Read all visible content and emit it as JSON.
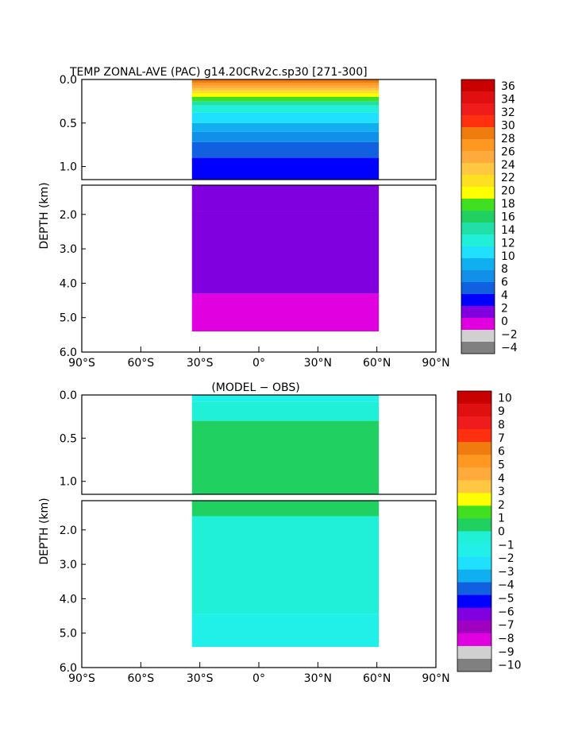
{
  "chart_data": [
    {
      "type": "heatmap",
      "title": "TEMP ZONAL-AVE (PAC) g14.20CRv2c.sp30 [271-300]",
      "ylabel": "DEPTH (km)",
      "xlabel": "",
      "x_ticks": [
        "90°S",
        "60°S",
        "30°S",
        "0°",
        "30°N",
        "60°N",
        "90°N"
      ],
      "x_tick_values": [
        -90,
        -60,
        -30,
        0,
        30,
        60,
        90
      ],
      "upper_y_ticks": [
        "0.0",
        "0.5",
        "1.0"
      ],
      "upper_y_values": [
        0,
        0.5,
        1.0
      ],
      "lower_y_ticks": [
        "2.0",
        "3.0",
        "4.0",
        "5.0",
        "6.0"
      ],
      "lower_y_values": [
        2,
        3,
        4,
        5,
        6
      ],
      "xlim": [
        -90,
        90
      ],
      "upper_ylim": [
        0,
        1.15
      ],
      "lower_ylim": [
        1.15,
        6.0
      ],
      "data_extent": {
        "lat_min": -34,
        "lat_max": 61,
        "max_depth": 5.4
      },
      "colorbar": {
        "labels": [
          "36",
          "34",
          "32",
          "30",
          "28",
          "26",
          "24",
          "22",
          "20",
          "18",
          "16",
          "14",
          "12",
          "10",
          "8",
          "6",
          "4",
          "2",
          "0",
          "−2",
          "−4"
        ],
        "colors": [
          "#c80000",
          "#e01010",
          "#f01c1c",
          "#ff3010",
          "#f07c10",
          "#ff9820",
          "#ffaa3c",
          "#ffc840",
          "#ffe020",
          "#ffff00",
          "#40e020",
          "#20d060",
          "#20e0a8",
          "#20f0d8",
          "#20e0ff",
          "#10b0f0",
          "#1090e8",
          "#1060e0",
          "#0000ff",
          "#8000e0",
          "#e000e0",
          "#d0d0d0",
          "#808080"
        ]
      },
      "upper_bands": [
        {
          "depth": 0.04,
          "temp": 29
        },
        {
          "depth": 0.07,
          "temp": 27
        },
        {
          "depth": 0.1,
          "temp": 25
        },
        {
          "depth": 0.13,
          "temp": 23
        },
        {
          "depth": 0.16,
          "temp": 21
        },
        {
          "depth": 0.2,
          "temp": 19
        },
        {
          "depth": 0.25,
          "temp": 17
        },
        {
          "depth": 0.3,
          "temp": 15
        },
        {
          "depth": 0.38,
          "temp": 13
        },
        {
          "depth": 0.5,
          "temp": 11
        },
        {
          "depth": 0.6,
          "temp": 9
        },
        {
          "depth": 0.72,
          "temp": 7
        },
        {
          "depth": 0.9,
          "temp": 5
        },
        {
          "depth": 1.15,
          "temp": 3
        }
      ],
      "lower_bands": [
        {
          "depth": 1.9,
          "temp": 2.5
        },
        {
          "depth": 4.3,
          "temp": 1.5
        },
        {
          "depth": 5.4,
          "temp": -0.5
        }
      ]
    },
    {
      "type": "heatmap",
      "title": "(MODEL − OBS)",
      "ylabel": "DEPTH (km)",
      "xlabel": "",
      "x_ticks": [
        "90°S",
        "60°S",
        "30°S",
        "0°",
        "30°N",
        "60°N",
        "90°N"
      ],
      "x_tick_values": [
        -90,
        -60,
        -30,
        0,
        30,
        60,
        90
      ],
      "upper_y_ticks": [
        "0.0",
        "0.5",
        "1.0"
      ],
      "upper_y_values": [
        0,
        0.5,
        1.0
      ],
      "lower_y_ticks": [
        "2.0",
        "3.0",
        "4.0",
        "5.0",
        "6.0"
      ],
      "lower_y_values": [
        2,
        3,
        4,
        5,
        6
      ],
      "xlim": [
        -90,
        90
      ],
      "upper_ylim": [
        0,
        1.15
      ],
      "lower_ylim": [
        1.15,
        6.0
      ],
      "data_extent": {
        "lat_min": -34,
        "lat_max": 61,
        "max_depth": 5.4
      },
      "colorbar": {
        "labels": [
          "10",
          "9",
          "8",
          "7",
          "6",
          "5",
          "4",
          "3",
          "2",
          "1",
          "0",
          "−1",
          "−2",
          "−3",
          "−4",
          "−5",
          "−6",
          "−7",
          "−8",
          "−9",
          "−10"
        ],
        "colors": [
          "#c80000",
          "#e01010",
          "#f01c1c",
          "#ff3010",
          "#f07c10",
          "#ff9820",
          "#ffaa3c",
          "#ffc840",
          "#ffff00",
          "#40e020",
          "#20d060",
          "#20f0d8",
          "#20f0e8",
          "#20e0ff",
          "#10b0f0",
          "#1060e0",
          "#0000ff",
          "#8000e0",
          "#a000c0",
          "#e000e0",
          "#d0d0d0",
          "#808080"
        ]
      },
      "upper_bands": [
        {
          "depth": 0.08,
          "temp": -1.5
        },
        {
          "depth": 0.3,
          "temp": -0.5
        },
        {
          "depth": 1.15,
          "temp": 0.5
        }
      ],
      "lower_bands": [
        {
          "depth": 1.6,
          "temp": 0.5
        },
        {
          "depth": 4.45,
          "temp": -0.5
        },
        {
          "depth": 5.4,
          "temp": -1.5
        }
      ]
    }
  ]
}
